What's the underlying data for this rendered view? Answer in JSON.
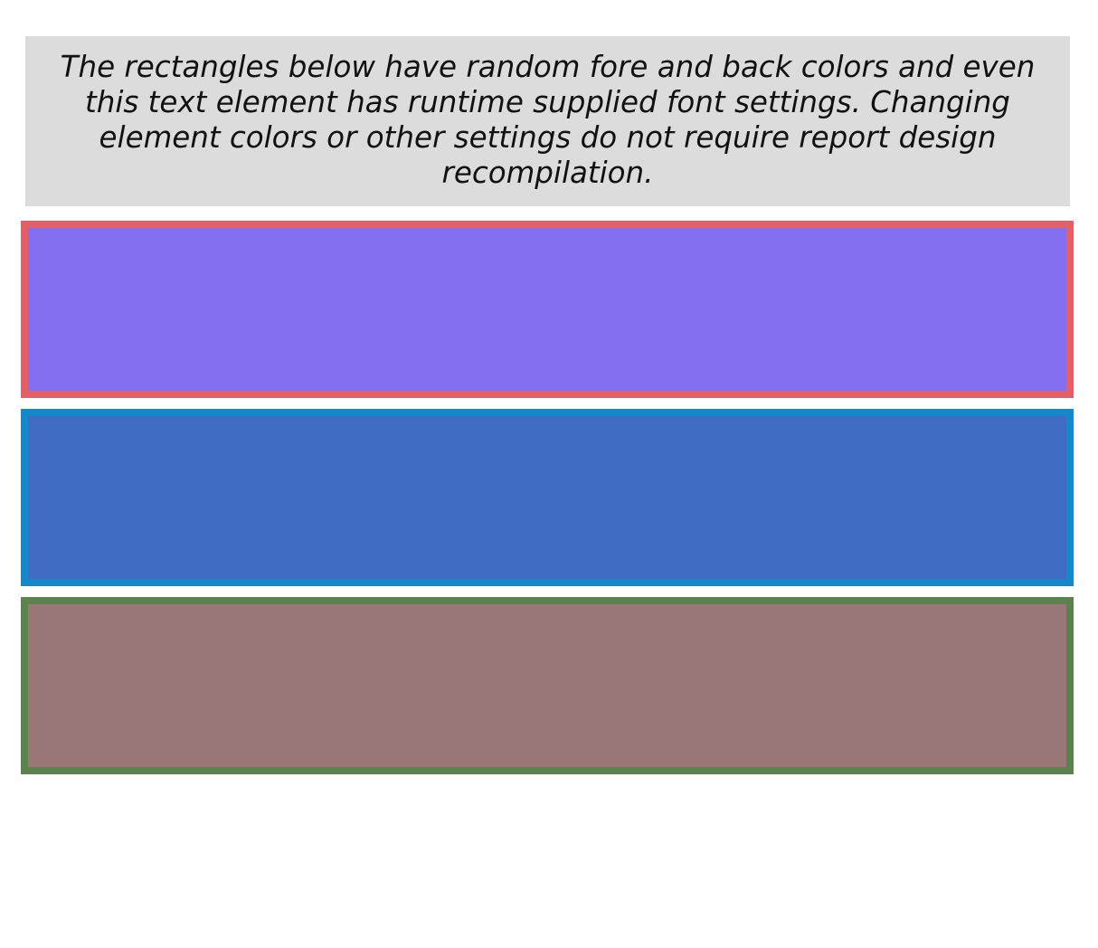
{
  "description": {
    "text": "The rectangles below have random fore and back colors and even this text element has runtime supplied font settings. Changing element colors or other settings do not require report design recompilation.",
    "background_color": "#dcdcdc"
  },
  "rectangles": [
    {
      "fore_color": "#e46067",
      "back_color": "#846ff0"
    },
    {
      "fore_color": "#1488c8",
      "back_color": "#3f6bc2"
    },
    {
      "fore_color": "#5c824e",
      "back_color": "#9a7878"
    }
  ]
}
